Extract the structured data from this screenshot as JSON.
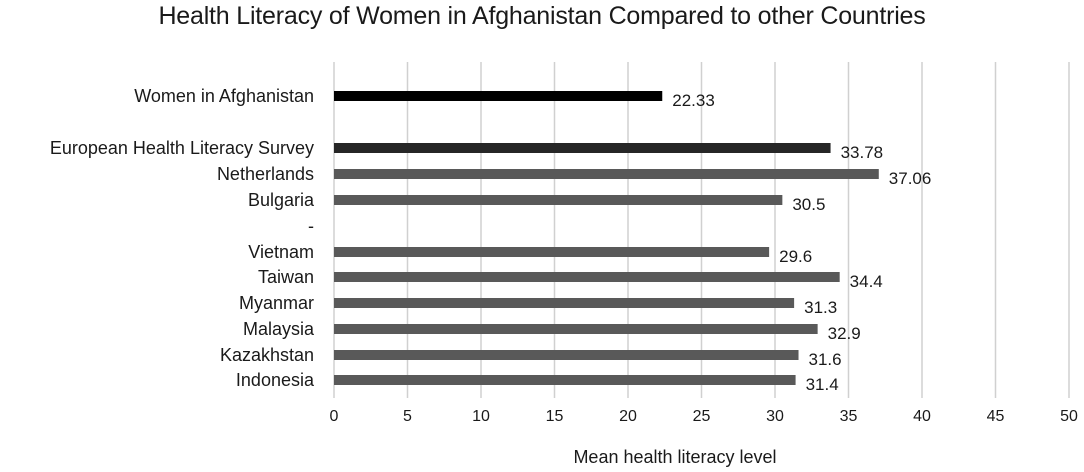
{
  "chart_data": {
    "type": "bar",
    "orientation": "horizontal",
    "title": "Health Literacy of Women in Afghanistan Compared to other Countries",
    "xlabel": "Mean health literacy level",
    "ylabel": "",
    "xlim": [
      0,
      50
    ],
    "x_ticks": [
      "0",
      "5",
      "10",
      "15",
      "20",
      "25",
      "30",
      "35",
      "40",
      "45",
      "50"
    ],
    "grid": true,
    "categories": [
      "Women in Afghanistan",
      "European Health Literacy Survey",
      "Netherlands",
      "Bulgaria",
      "-",
      "Vietnam",
      "Taiwan",
      "Myanmar",
      "Malaysia",
      "Kazakhstan",
      "Indonesia"
    ],
    "values": [
      22.33,
      33.78,
      37.06,
      30.5,
      null,
      29.6,
      34.4,
      31.3,
      32.9,
      31.6,
      31.4
    ],
    "value_labels": [
      "22.33",
      "33.78",
      "37.06",
      "30.5",
      "",
      "29.6",
      "34.4",
      "31.3",
      "32.9",
      "31.6",
      "31.4"
    ],
    "colors": {
      "Women in Afghanistan": "#000000",
      "European Health Literacy Survey": "#262626",
      "other": "#595959",
      "grid": "#d0d0d0"
    }
  }
}
